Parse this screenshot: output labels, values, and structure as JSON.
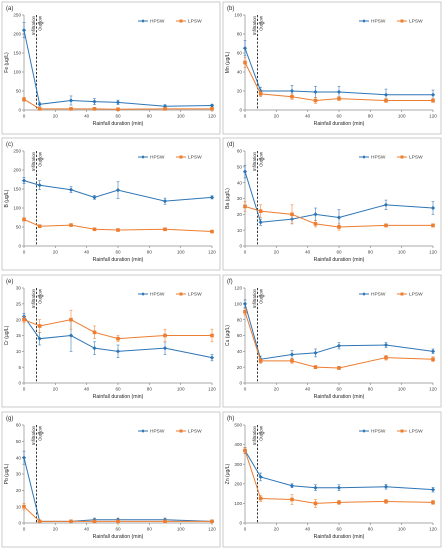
{
  "colors": {
    "HPSW": "#2e75b6",
    "LPSW": "#ed7d31",
    "axis": "#8c8c8c",
    "border": "#bfbfbf"
  },
  "chart_data": [
    {
      "type": "line",
      "panel_label": "(a)",
      "xlabel": "Rainfall duration (min)",
      "ylabel": "Fe (μg/L)",
      "xlim": [
        0,
        120
      ],
      "ylim": [
        0,
        250
      ],
      "xticks": [
        0,
        20,
        40,
        60,
        80,
        100,
        120
      ],
      "yticks": [
        0,
        50,
        100,
        150,
        200,
        250
      ],
      "legend_position": "top-right",
      "annotations": [
        "Infiltration",
        "Outflow"
      ],
      "annotation_x": 8,
      "series": [
        {
          "name": "HPSW",
          "color": "#2e75b6",
          "x": [
            0,
            10,
            30,
            45,
            60,
            90,
            120
          ],
          "y": [
            210,
            15,
            25,
            22,
            20,
            10,
            12
          ],
          "err": [
            20,
            5,
            12,
            8,
            6,
            4,
            3
          ]
        },
        {
          "name": "LPSW",
          "color": "#ed7d31",
          "x": [
            0,
            10,
            30,
            45,
            60,
            90,
            120
          ],
          "y": [
            28,
            3,
            3,
            3,
            2,
            3,
            3
          ],
          "err": [
            5,
            1,
            1,
            1,
            1,
            1,
            1
          ]
        }
      ]
    },
    {
      "type": "line",
      "panel_label": "(b)",
      "xlabel": "Rainfall duration (min)",
      "ylabel": "Mn (μg/L)",
      "xlim": [
        0,
        120
      ],
      "ylim": [
        0,
        100
      ],
      "xticks": [
        0,
        20,
        40,
        60,
        80,
        100,
        120
      ],
      "yticks": [
        0,
        20,
        40,
        60,
        80,
        100
      ],
      "legend_position": "top-right",
      "annotations": [
        "Infiltration",
        "Outflow"
      ],
      "annotation_x": 8,
      "series": [
        {
          "name": "HPSW",
          "color": "#2e75b6",
          "x": [
            0,
            10,
            30,
            45,
            60,
            90,
            120
          ],
          "y": [
            65,
            20,
            20,
            19,
            19,
            16,
            16
          ],
          "err": [
            8,
            4,
            6,
            6,
            6,
            6,
            5
          ]
        },
        {
          "name": "LPSW",
          "color": "#ed7d31",
          "x": [
            0,
            10,
            30,
            45,
            60,
            90,
            120
          ],
          "y": [
            50,
            17,
            14,
            10,
            12,
            10,
            10
          ],
          "err": [
            5,
            3,
            3,
            3,
            2,
            2,
            2
          ]
        }
      ]
    },
    {
      "type": "line",
      "panel_label": "(c)",
      "xlabel": "Rainfall duration (min)",
      "ylabel": "B (μg/L)",
      "xlim": [
        0,
        120
      ],
      "ylim": [
        0,
        250
      ],
      "xticks": [
        0,
        20,
        40,
        60,
        80,
        100,
        120
      ],
      "yticks": [
        0,
        50,
        100,
        150,
        200,
        250
      ],
      "legend_position": "top-right",
      "annotations": [
        "Infiltration",
        "Outflow"
      ],
      "annotation_x": 8,
      "series": [
        {
          "name": "HPSW",
          "color": "#2e75b6",
          "x": [
            0,
            10,
            30,
            45,
            60,
            90,
            120
          ],
          "y": [
            172,
            160,
            148,
            128,
            147,
            118,
            128
          ],
          "err": [
            8,
            12,
            8,
            5,
            22,
            8,
            4
          ]
        },
        {
          "name": "LPSW",
          "color": "#ed7d31",
          "x": [
            0,
            10,
            30,
            45,
            60,
            90,
            120
          ],
          "y": [
            70,
            52,
            55,
            44,
            42,
            44,
            38
          ],
          "err": [
            4,
            3,
            3,
            3,
            3,
            3,
            3
          ]
        }
      ]
    },
    {
      "type": "line",
      "panel_label": "(d)",
      "xlabel": "Rainfall duration (min)",
      "ylabel": "Ba (μg/L)",
      "xlim": [
        0,
        120
      ],
      "ylim": [
        0,
        60
      ],
      "xticks": [
        0,
        20,
        40,
        60,
        80,
        100,
        120
      ],
      "yticks": [
        0,
        10,
        20,
        30,
        40,
        50,
        60
      ],
      "legend_position": "top-right",
      "annotations": [
        "Infiltration",
        "Outflow"
      ],
      "annotation_x": 8,
      "series": [
        {
          "name": "HPSW",
          "color": "#2e75b6",
          "x": [
            0,
            10,
            30,
            45,
            60,
            90,
            120
          ],
          "y": [
            47,
            15,
            17,
            20,
            18,
            26,
            24
          ],
          "err": [
            4,
            2,
            3,
            4,
            5,
            3,
            4
          ]
        },
        {
          "name": "LPSW",
          "color": "#ed7d31",
          "x": [
            0,
            10,
            30,
            45,
            60,
            90,
            120
          ],
          "y": [
            25,
            22,
            20,
            14,
            12,
            13,
            13
          ],
          "err": [
            3,
            4,
            6,
            2,
            2,
            1,
            1
          ]
        }
      ]
    },
    {
      "type": "line",
      "panel_label": "(e)",
      "xlabel": "Rainfall duration (min)",
      "ylabel": "Cr (μg/L)",
      "xlim": [
        0,
        120
      ],
      "ylim": [
        0,
        30
      ],
      "xticks": [
        0,
        20,
        40,
        60,
        80,
        100,
        120
      ],
      "yticks": [
        0,
        5,
        10,
        15,
        20,
        25,
        30
      ],
      "legend_position": "top-right",
      "annotations": [
        "Infiltration",
        "Outflow"
      ],
      "annotation_x": 8,
      "series": [
        {
          "name": "HPSW",
          "color": "#2e75b6",
          "x": [
            0,
            10,
            30,
            45,
            60,
            90,
            120
          ],
          "y": [
            21,
            14,
            15,
            11,
            10,
            11,
            8
          ],
          "err": [
            1,
            2,
            5,
            2,
            2,
            2,
            1
          ]
        },
        {
          "name": "LPSW",
          "color": "#ed7d31",
          "x": [
            0,
            10,
            30,
            45,
            60,
            90,
            120
          ],
          "y": [
            20,
            18,
            20,
            16,
            14,
            15,
            15
          ],
          "err": [
            1,
            2,
            3,
            2,
            1,
            2,
            2
          ]
        }
      ]
    },
    {
      "type": "line",
      "panel_label": "(f)",
      "xlabel": "Rainfall duration (min)",
      "ylabel": "Cu (μg/L)",
      "xlim": [
        0,
        120
      ],
      "ylim": [
        0,
        120
      ],
      "xticks": [
        0,
        20,
        40,
        60,
        80,
        100,
        120
      ],
      "yticks": [
        0,
        20,
        40,
        60,
        80,
        100,
        120
      ],
      "legend_position": "top-right",
      "annotations": [
        "Infiltration",
        "Outflow"
      ],
      "annotation_x": 8,
      "series": [
        {
          "name": "HPSW",
          "color": "#2e75b6",
          "x": [
            0,
            10,
            30,
            45,
            60,
            90,
            120
          ],
          "y": [
            100,
            30,
            36,
            38,
            47,
            48,
            40
          ],
          "err": [
            5,
            4,
            5,
            5,
            4,
            3,
            3
          ]
        },
        {
          "name": "LPSW",
          "color": "#ed7d31",
          "x": [
            0,
            10,
            30,
            45,
            60,
            90,
            120
          ],
          "y": [
            90,
            28,
            28,
            20,
            19,
            32,
            30
          ],
          "err": [
            4,
            3,
            3,
            2,
            2,
            3,
            3
          ]
        }
      ]
    },
    {
      "type": "line",
      "panel_label": "(g)",
      "xlabel": "Rainfall duration (min)",
      "ylabel": "Pb (μg/L)",
      "xlim": [
        0,
        120
      ],
      "ylim": [
        0,
        60
      ],
      "xticks": [
        0,
        20,
        40,
        60,
        80,
        100,
        120
      ],
      "yticks": [
        0,
        10,
        20,
        30,
        40,
        50,
        60
      ],
      "legend_position": "top-right",
      "annotations": [
        "Infiltration",
        "Outflow"
      ],
      "annotation_x": 8,
      "series": [
        {
          "name": "HPSW",
          "color": "#2e75b6",
          "x": [
            0,
            10,
            30,
            45,
            60,
            90,
            120
          ],
          "y": [
            40,
            1,
            1,
            2,
            2,
            2,
            1
          ],
          "err": [
            4,
            0.5,
            0.5,
            1,
            1,
            1,
            0.5
          ]
        },
        {
          "name": "LPSW",
          "color": "#ed7d31",
          "x": [
            0,
            10,
            30,
            45,
            60,
            90,
            120
          ],
          "y": [
            10,
            1,
            1,
            1,
            1,
            1,
            1
          ],
          "err": [
            2,
            0.5,
            0.5,
            0.5,
            0.5,
            0.5,
            0.5
          ]
        }
      ]
    },
    {
      "type": "line",
      "panel_label": "(h)",
      "xlabel": "Rainfall duration (min)",
      "ylabel": "Zn (μg/L)",
      "xlim": [
        0,
        120
      ],
      "ylim": [
        0,
        500
      ],
      "xticks": [
        0,
        20,
        40,
        60,
        80,
        100,
        120
      ],
      "yticks": [
        0,
        100,
        200,
        300,
        400,
        500
      ],
      "legend_position": "top-right",
      "annotations": [
        "Infiltration",
        "Outflow"
      ],
      "annotation_x": 8,
      "series": [
        {
          "name": "HPSW",
          "color": "#2e75b6",
          "x": [
            0,
            10,
            30,
            45,
            60,
            90,
            120
          ],
          "y": [
            370,
            235,
            190,
            180,
            180,
            185,
            170
          ],
          "err": [
            15,
            20,
            10,
            15,
            15,
            12,
            12
          ]
        },
        {
          "name": "LPSW",
          "color": "#ed7d31",
          "x": [
            0,
            10,
            30,
            45,
            60,
            90,
            120
          ],
          "y": [
            370,
            125,
            120,
            100,
            105,
            110,
            105
          ],
          "err": [
            15,
            15,
            25,
            20,
            10,
            10,
            10
          ]
        }
      ]
    }
  ]
}
